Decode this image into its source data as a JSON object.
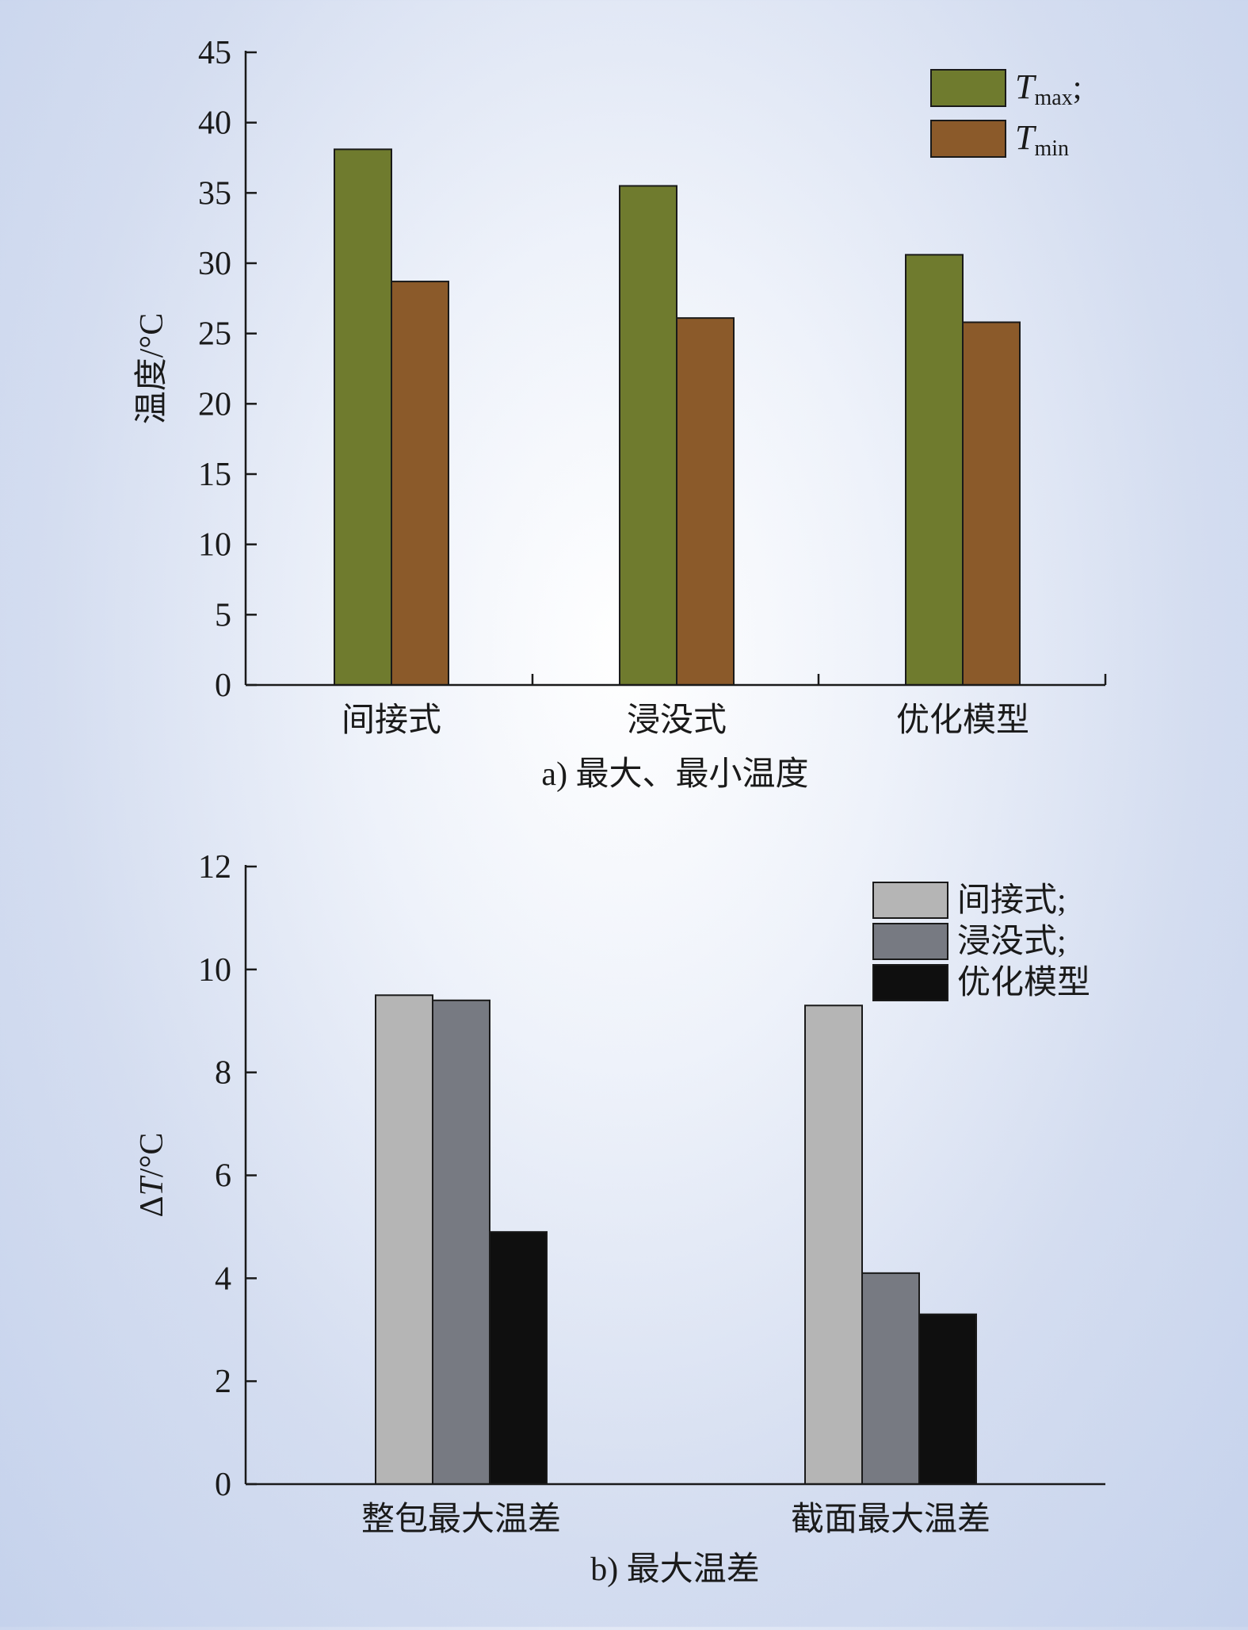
{
  "chart_data": [
    {
      "type": "bar",
      "caption": "a) 最大、最小温度",
      "ylabel": "温度/°C",
      "ylim": [
        0,
        45
      ],
      "yticks": [
        0,
        5,
        10,
        15,
        20,
        25,
        30,
        35,
        40,
        45
      ],
      "categories": [
        "间接式",
        "浸没式",
        "优化模型"
      ],
      "series": [
        {
          "name": "T_max;",
          "legend_main": "T",
          "legend_sub": "max",
          "legend_suffix": ";",
          "color": "#6f7b2e",
          "values": [
            38.1,
            35.5,
            30.6
          ]
        },
        {
          "name": "T_min",
          "legend_main": "T",
          "legend_sub": "min",
          "legend_suffix": "",
          "color": "#8b5a2a",
          "values": [
            28.7,
            26.1,
            25.8
          ]
        }
      ],
      "legend_position": "top-right",
      "grid": false
    },
    {
      "type": "bar",
      "caption": "b) 最大温差",
      "ylabel": "ΔT/°C",
      "ylabel_main": "Δ",
      "ylabel_italic": "T",
      "ylabel_suffix": "/°C",
      "ylim": [
        0,
        12
      ],
      "yticks": [
        0,
        2,
        4,
        6,
        8,
        10,
        12
      ],
      "categories": [
        "整包最大温差",
        "截面最大温差"
      ],
      "series": [
        {
          "name": "间接式;",
          "color": "#b5b5b5",
          "values": [
            9.5,
            9.3
          ]
        },
        {
          "name": "浸没式;",
          "color": "#777a82",
          "values": [
            9.4,
            4.1
          ]
        },
        {
          "name": "优化模型",
          "color": "#0f0f0f",
          "values": [
            4.9,
            3.3
          ]
        }
      ],
      "legend_position": "top-right",
      "grid": false
    }
  ]
}
